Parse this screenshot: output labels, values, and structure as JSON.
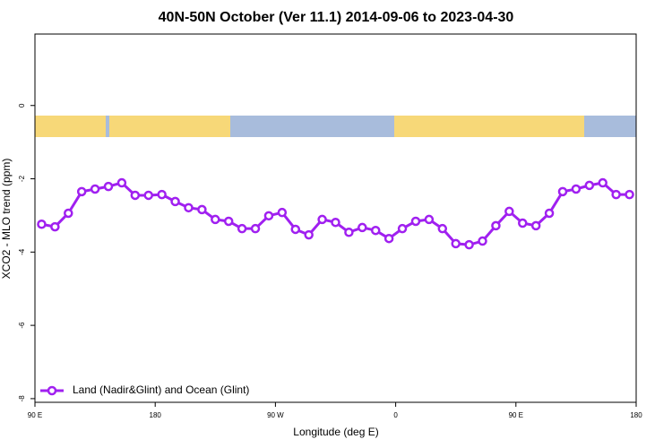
{
  "chart_data": {
    "type": "line",
    "title": "40N-50N October (Ver 11.1)   2014-09-06 to 2023-04-30",
    "x_label": "Longitude (deg E)",
    "y_label": "XCO2 - MLO trend (ppm)",
    "legend_position": "bottom left",
    "xlim": [
      90,
      540
    ],
    "ylim": [
      -8.1,
      1.95
    ],
    "xticks": [
      {
        "value": 90,
        "label": "90 E"
      },
      {
        "value": 180,
        "label": "180"
      },
      {
        "value": 270,
        "label": "90 W"
      },
      {
        "value": 360,
        "label": "0"
      },
      {
        "value": 450,
        "label": "90 E"
      },
      {
        "value": 540,
        "label": "180"
      }
    ],
    "yticks": [
      -8,
      -6,
      -4,
      -2,
      0
    ],
    "x": [
      95,
      105,
      115,
      125,
      135,
      145,
      155,
      165,
      175,
      185,
      195,
      205,
      215,
      225,
      235,
      245,
      255,
      265,
      275,
      285,
      295,
      305,
      315,
      325,
      335,
      345,
      355,
      365,
      375,
      385,
      395,
      405,
      415,
      425,
      435,
      445,
      455,
      465,
      475,
      485,
      495,
      505,
      515,
      525,
      535
    ],
    "series": [
      {
        "name": "Land (Nadir&Glint) and Ocean (Glint)",
        "color": "#a020f0",
        "values": [
          -3.24,
          -3.31,
          -2.94,
          -2.35,
          -2.28,
          -2.21,
          -2.11,
          -2.45,
          -2.45,
          -2.43,
          -2.62,
          -2.79,
          -2.84,
          -3.11,
          -3.16,
          -3.36,
          -3.36,
          -3.01,
          -2.92,
          -3.38,
          -3.53,
          -3.11,
          -3.19,
          -3.46,
          -3.33,
          -3.41,
          -3.63,
          -3.36,
          -3.16,
          -3.11,
          -3.36,
          -3.77,
          -3.8,
          -3.7,
          -3.28,
          -2.89,
          -3.21,
          -3.28,
          -2.94,
          -2.35,
          -2.28,
          -2.18,
          -2.11,
          -2.43,
          -2.43
        ]
      }
    ]
  }
}
